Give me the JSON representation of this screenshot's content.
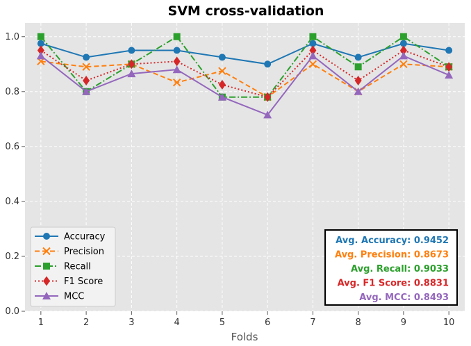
{
  "chart_data": {
    "type": "line",
    "title": "SVM cross-validation",
    "xlabel": "Folds",
    "ylabel": "",
    "x": [
      1,
      2,
      3,
      4,
      5,
      6,
      7,
      8,
      9,
      10
    ],
    "xlim": [
      0.65,
      10.35
    ],
    "ylim": [
      0.0,
      1.05
    ],
    "yticks": [
      0.0,
      0.2,
      0.4,
      0.6,
      0.8,
      1.0
    ],
    "ytick_labels": [
      "0.0",
      "0.2",
      "0.4",
      "0.6",
      "0.8",
      "1.0"
    ],
    "xtick_labels": [
      "1",
      "2",
      "3",
      "4",
      "5",
      "6",
      "7",
      "8",
      "9",
      "10"
    ],
    "grid": true,
    "legend_position": "bottom-left",
    "series": [
      {
        "name": "Accuracy",
        "color": "#1f77b4",
        "marker": "circle",
        "linestyle": "solid",
        "values": [
          0.975,
          0.925,
          0.95,
          0.95,
          0.925,
          0.9,
          0.975,
          0.925,
          0.975,
          0.95
        ]
      },
      {
        "name": "Precision",
        "color": "#ff7f0e",
        "marker": "x",
        "linestyle": "dashed",
        "values": [
          0.91,
          0.89,
          0.9,
          0.833,
          0.875,
          0.78,
          0.9,
          0.8,
          0.9,
          0.89
        ]
      },
      {
        "name": "Recall",
        "color": "#2ca02c",
        "marker": "square",
        "linestyle": "dashdot",
        "values": [
          1.0,
          0.8,
          0.9,
          1.0,
          0.78,
          0.78,
          1.0,
          0.89,
          1.0,
          0.89
        ]
      },
      {
        "name": "F1 Score",
        "color": "#d62728",
        "marker": "diamond",
        "linestyle": "dotted",
        "values": [
          0.95,
          0.84,
          0.9,
          0.91,
          0.825,
          0.78,
          0.95,
          0.84,
          0.95,
          0.89
        ]
      },
      {
        "name": "MCC",
        "color": "#9467bd",
        "marker": "triangle",
        "linestyle": "solid",
        "values": [
          0.93,
          0.8,
          0.865,
          0.88,
          0.78,
          0.715,
          0.93,
          0.8,
          0.93,
          0.86
        ]
      }
    ],
    "annotation_box": [
      {
        "text": "Avg. Accuracy: 0.9452",
        "color": "#1f77b4"
      },
      {
        "text": "Avg. Precision: 0.8673",
        "color": "#ff7f0e"
      },
      {
        "text": "Avg. Recall: 0.9033",
        "color": "#2ca02c"
      },
      {
        "text": "Avg. F1 Score: 0.8831",
        "color": "#d62728"
      },
      {
        "text": "Avg. MCC: 0.8493",
        "color": "#9467bd"
      }
    ]
  }
}
